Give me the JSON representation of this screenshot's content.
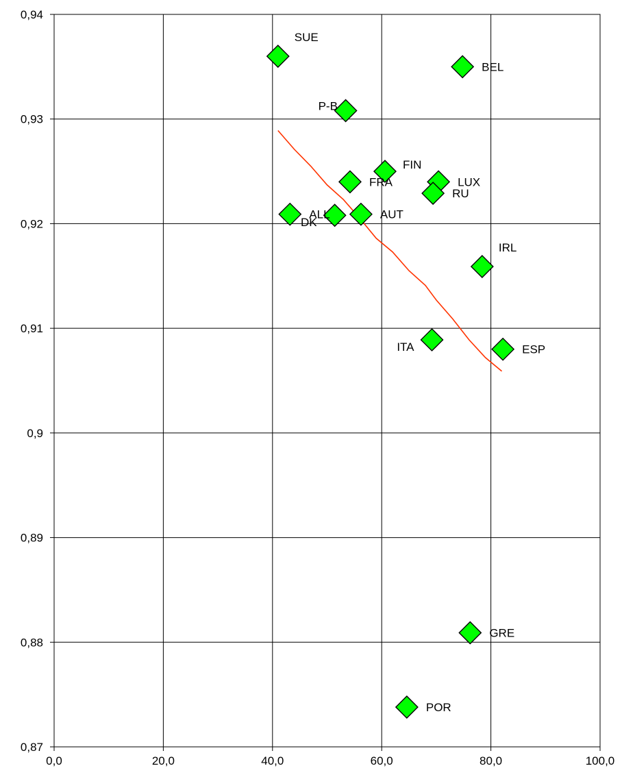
{
  "chart_data": {
    "type": "scatter",
    "title": "",
    "xlabel": "",
    "ylabel": "",
    "xlim": [
      0,
      100
    ],
    "ylim": [
      0.87,
      0.94
    ],
    "grid": true,
    "legend": "none",
    "x_ticks": [
      0,
      20,
      40,
      60,
      80,
      100
    ],
    "x_tick_labels": [
      "0,0",
      "20,0",
      "40,0",
      "60,0",
      "80,0",
      "100,0"
    ],
    "y_ticks": [
      0.87,
      0.88,
      0.89,
      0.9,
      0.91,
      0.92,
      0.93,
      0.94
    ],
    "y_tick_labels": [
      "0,87",
      "0,88",
      "0,89",
      "0,9",
      "0,91",
      "0,92",
      "0,93",
      "0,94"
    ],
    "points": [
      {
        "label": "SUE",
        "x": 41.0,
        "y": 0.936,
        "label_pos": "above-right"
      },
      {
        "label": "BEL",
        "x": 74.8,
        "y": 0.935,
        "label_pos": "right"
      },
      {
        "label": "P-B",
        "x": 53.4,
        "y": 0.9308,
        "label_pos": "left"
      },
      {
        "label": "FIN",
        "x": 60.6,
        "y": 0.925,
        "label_pos": "right-up"
      },
      {
        "label": "FRA",
        "x": 54.2,
        "y": 0.924,
        "label_pos": "right"
      },
      {
        "label": "LUX",
        "x": 70.4,
        "y": 0.924,
        "label_pos": "right"
      },
      {
        "label": "RU",
        "x": 69.4,
        "y": 0.9229,
        "label_pos": "right"
      },
      {
        "label": "ALL",
        "x": 43.2,
        "y": 0.9209,
        "label_pos": "right"
      },
      {
        "label": "DK",
        "x": 51.4,
        "y": 0.9208,
        "label_pos": "left-down"
      },
      {
        "label": "AUT",
        "x": 56.2,
        "y": 0.9209,
        "label_pos": "right"
      },
      {
        "label": "IRL",
        "x": 78.4,
        "y": 0.9159,
        "label_pos": "above-right"
      },
      {
        "label": "ITA",
        "x": 69.2,
        "y": 0.9089,
        "label_pos": "left-down"
      },
      {
        "label": "ESP",
        "x": 82.2,
        "y": 0.908,
        "label_pos": "right"
      },
      {
        "label": "GRE",
        "x": 76.2,
        "y": 0.8809,
        "label_pos": "right"
      },
      {
        "label": "POR",
        "x": 64.6,
        "y": 0.8738,
        "label_pos": "right"
      }
    ],
    "trendline": {
      "x": [
        41.0,
        44.0,
        47.0,
        50.0,
        53.0,
        56.0,
        59.0,
        62.0,
        65.0,
        68.0,
        70.0,
        73.0,
        76.0,
        79.0,
        82.0
      ],
      "y": [
        0.9289,
        0.9271,
        0.9255,
        0.9237,
        0.9223,
        0.9205,
        0.9186,
        0.9173,
        0.9155,
        0.9141,
        0.9127,
        0.9109,
        0.9089,
        0.9072,
        0.9059
      ]
    },
    "colors": {
      "marker_fill": "#00ff00",
      "marker_stroke": "#000000",
      "trendline": "#ff3300",
      "grid": "#000000"
    }
  }
}
